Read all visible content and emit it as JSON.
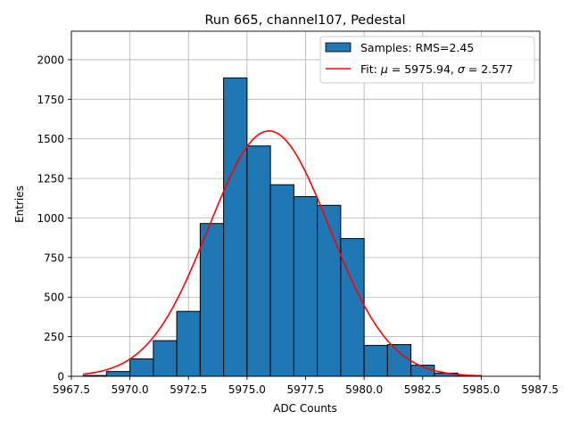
{
  "chart_data": {
    "type": "bar",
    "title": "Run 665, channel107, Pedestal",
    "xlabel": "ADC Counts",
    "ylabel": "Entries",
    "xlim": [
      5967.5,
      5987.5
    ],
    "ylim": [
      0,
      2180
    ],
    "xticks": [
      5967.5,
      5970.0,
      5972.5,
      5975.0,
      5977.5,
      5980.0,
      5982.5,
      5985.0,
      5987.5
    ],
    "xtick_labels": [
      "5967.5",
      "5970.0",
      "5972.5",
      "5975.0",
      "5977.5",
      "5980.0",
      "5982.5",
      "5985.0",
      "5987.5"
    ],
    "yticks": [
      0,
      250,
      500,
      750,
      1000,
      1250,
      1500,
      1750,
      2000
    ],
    "ytick_labels": [
      "0",
      "250",
      "500",
      "750",
      "1000",
      "1250",
      "1500",
      "1750",
      "2000"
    ],
    "grid": true,
    "legend_position": "top-right",
    "bins": [
      {
        "x0": 5968,
        "x1": 5969,
        "value": 5
      },
      {
        "x0": 5969,
        "x1": 5970,
        "value": 30
      },
      {
        "x0": 5970,
        "x1": 5971,
        "value": 110
      },
      {
        "x0": 5971,
        "x1": 5972,
        "value": 225
      },
      {
        "x0": 5972,
        "x1": 5973,
        "value": 410
      },
      {
        "x0": 5973,
        "x1": 5974,
        "value": 965
      },
      {
        "x0": 5974,
        "x1": 5975,
        "value": 1885
      },
      {
        "x0": 5975,
        "x1": 5976,
        "value": 1455
      },
      {
        "x0": 5976,
        "x1": 5977,
        "value": 1210
      },
      {
        "x0": 5977,
        "x1": 5978,
        "value": 1135
      },
      {
        "x0": 5978,
        "x1": 5979,
        "value": 1080
      },
      {
        "x0": 5979,
        "x1": 5980,
        "value": 870
      },
      {
        "x0": 5980,
        "x1": 5981,
        "value": 195
      },
      {
        "x0": 5981,
        "x1": 5982,
        "value": 200
      },
      {
        "x0": 5982,
        "x1": 5983,
        "value": 70
      },
      {
        "x0": 5983,
        "x1": 5984,
        "value": 20
      },
      {
        "x0": 5984,
        "x1": 5985,
        "value": 5
      }
    ],
    "fit": {
      "mu": 5975.94,
      "sigma": 2.577,
      "amplitude": 1550,
      "x_range": [
        5968.0,
        5985.0
      ]
    },
    "series": [
      {
        "name": "Samples: RMS=2.45",
        "kind": "histogram",
        "color": "#1f77b4"
      },
      {
        "name": "Fit: μ = 5975.94, σ = 2.577",
        "kind": "line",
        "color": "#e41a1c"
      }
    ],
    "legend_entries": {
      "samples": "Samples: RMS=2.45",
      "fit_prefix": "Fit: ",
      "mu_symbol": "μ",
      "mu_value": " = 5975.94, ",
      "sigma_symbol": "σ",
      "sigma_value": " = 2.577"
    }
  }
}
